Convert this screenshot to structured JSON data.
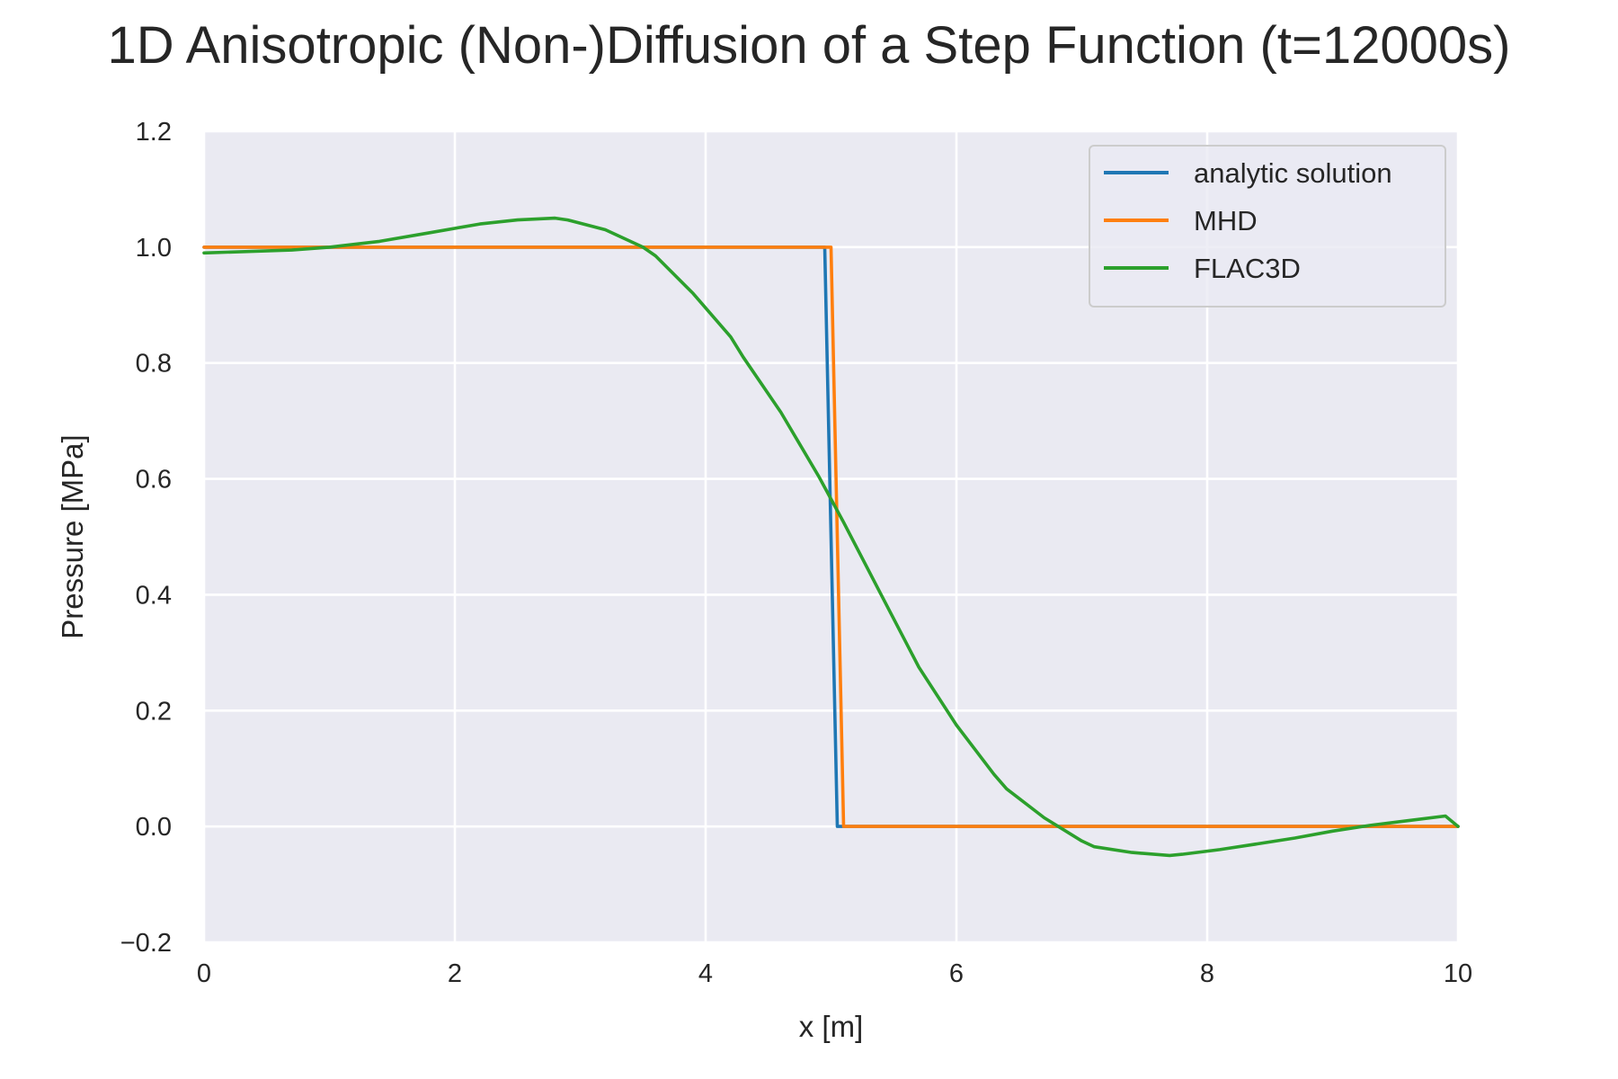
{
  "chart_data": {
    "type": "line",
    "title": "1D Anisotropic (Non-)Diffusion of a Step Function (t=12000s)",
    "xlabel": "x [m]",
    "ylabel": "Pressure [MPa]",
    "xlim": [
      0,
      10
    ],
    "ylim": [
      -0.2,
      1.2
    ],
    "x_ticks": [
      0,
      2,
      4,
      6,
      8,
      10
    ],
    "x_tick_labels": [
      "0",
      "2",
      "4",
      "6",
      "8",
      "10"
    ],
    "y_ticks": [
      -0.2,
      0.0,
      0.2,
      0.4,
      0.6,
      0.8,
      1.0,
      1.2
    ],
    "y_tick_labels": [
      "−0.2",
      "0.0",
      "0.2",
      "0.4",
      "0.6",
      "0.8",
      "1.0",
      "1.2"
    ],
    "grid": true,
    "legend_position": "top-right",
    "series": [
      {
        "name": "analytic solution",
        "color": "#1f77b4",
        "x": [
          0,
          4.95,
          5.05,
          10
        ],
        "y": [
          1.0,
          1.0,
          0.0,
          0.0
        ]
      },
      {
        "name": "MHD",
        "color": "#ff7f0e",
        "x": [
          0,
          5.0,
          5.1,
          10
        ],
        "y": [
          1.0,
          1.0,
          0.0,
          0.0
        ]
      },
      {
        "name": "FLAC3D",
        "color": "#2ca02c",
        "x": [
          0,
          0.7,
          1.0,
          1.4,
          1.8,
          2.2,
          2.5,
          2.8,
          2.9,
          3.2,
          3.5,
          3.6,
          3.9,
          4.2,
          4.3,
          4.6,
          4.9,
          5.1,
          5.4,
          5.7,
          6.0,
          6.3,
          6.4,
          6.7,
          7.0,
          7.1,
          7.4,
          7.7,
          7.8,
          8.1,
          8.4,
          8.7,
          9.0,
          9.3,
          9.6,
          9.9,
          10.0
        ],
        "y": [
          0.99,
          0.995,
          1.0,
          1.01,
          1.025,
          1.04,
          1.047,
          1.05,
          1.047,
          1.03,
          1.0,
          0.985,
          0.92,
          0.845,
          0.81,
          0.715,
          0.605,
          0.525,
          0.4,
          0.275,
          0.175,
          0.09,
          0.065,
          0.015,
          -0.025,
          -0.035,
          -0.045,
          -0.05,
          -0.048,
          -0.04,
          -0.03,
          -0.02,
          -0.008,
          0.002,
          0.01,
          0.018,
          0.0
        ]
      }
    ]
  }
}
